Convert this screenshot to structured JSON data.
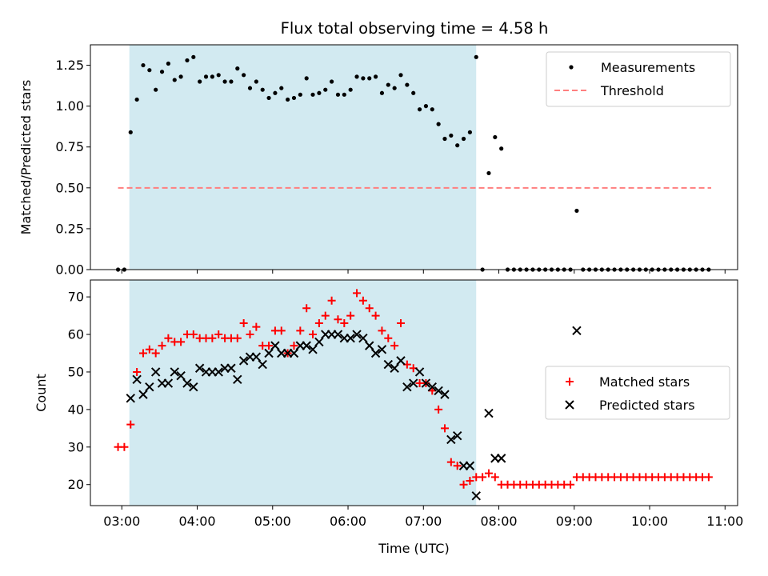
{
  "title": "Flux total observing time = 4.58 h",
  "colors": {
    "shade": "#add8e6",
    "threshold": "#ff7f7f",
    "matched": "#ff0000",
    "predicted": "#000000",
    "measurements": "#000000"
  },
  "chart_data": [
    {
      "type": "scatter",
      "panel": "top",
      "ylabel": "Matched/Predicted stars",
      "ylim": [
        0,
        1.375
      ],
      "yticks": [
        0,
        0.25,
        0.5,
        0.75,
        1.0,
        1.25
      ],
      "yticklabels": [
        "0.00",
        "0.25",
        "0.50",
        "0.75",
        "1.00",
        "1.25"
      ],
      "xlim": [
        "02:35",
        "11:10"
      ],
      "shaded_interval": [
        "03:06",
        "07:42"
      ],
      "legend_placement": "top-right",
      "legend": [
        {
          "label": "Measurements",
          "marker": "dot"
        },
        {
          "label": "Threshold",
          "marker": "dashed-line"
        }
      ],
      "threshold": {
        "value": 0.5,
        "x_from": "02:57",
        "x_to": "10:49"
      },
      "measurements": {
        "x": [
          "02:57",
          "03:02",
          "03:07",
          "03:12",
          "03:17",
          "03:22",
          "03:27",
          "03:32",
          "03:37",
          "03:42",
          "03:47",
          "03:52",
          "03:57",
          "04:02",
          "04:07",
          "04:12",
          "04:17",
          "04:22",
          "04:27",
          "04:32",
          "04:37",
          "04:42",
          "04:47",
          "04:52",
          "04:57",
          "05:02",
          "05:07",
          "05:12",
          "05:17",
          "05:22",
          "05:27",
          "05:32",
          "05:37",
          "05:42",
          "05:47",
          "05:52",
          "05:57",
          "06:02",
          "06:07",
          "06:12",
          "06:17",
          "06:22",
          "06:27",
          "06:32",
          "06:37",
          "06:42",
          "06:47",
          "06:52",
          "06:57",
          "07:02",
          "07:07",
          "07:12",
          "07:17",
          "07:22",
          "07:27",
          "07:32",
          "07:37",
          "07:42",
          "07:47",
          "07:52",
          "07:57",
          "08:02",
          "08:07",
          "08:12",
          "08:17",
          "08:22",
          "08:27",
          "08:32",
          "08:37",
          "08:42",
          "08:47",
          "08:52",
          "08:57",
          "09:02",
          "09:07",
          "09:12",
          "09:17",
          "09:22",
          "09:27",
          "09:32",
          "09:37",
          "09:42",
          "09:47",
          "09:52",
          "09:57",
          "10:02",
          "10:07",
          "10:12",
          "10:17",
          "10:22",
          "10:27",
          "10:32",
          "10:37",
          "10:42",
          "10:47"
        ],
        "y": [
          0,
          0,
          0.84,
          1.04,
          1.25,
          1.22,
          1.1,
          1.21,
          1.26,
          1.16,
          1.18,
          1.28,
          1.3,
          1.15,
          1.18,
          1.18,
          1.19,
          1.15,
          1.15,
          1.23,
          1.19,
          1.11,
          1.15,
          1.1,
          1.05,
          1.08,
          1.11,
          1.04,
          1.05,
          1.07,
          1.17,
          1.07,
          1.08,
          1.1,
          1.15,
          1.07,
          1.07,
          1.1,
          1.18,
          1.17,
          1.17,
          1.18,
          1.08,
          1.13,
          1.11,
          1.19,
          1.13,
          1.08,
          0.98,
          1.0,
          0.98,
          0.89,
          0.8,
          0.82,
          0.76,
          0.8,
          0.84,
          1.3,
          0,
          0.59,
          0.81,
          0.74,
          0,
          0,
          0,
          0,
          0,
          0,
          0,
          0,
          0,
          0,
          0,
          0.36,
          0,
          0,
          0,
          0,
          0,
          0,
          0,
          0,
          0,
          0,
          0,
          0,
          0,
          0,
          0,
          0,
          0,
          0,
          0,
          0,
          0
        ]
      }
    },
    {
      "type": "scatter",
      "panel": "bottom",
      "xlabel": "Time (UTC)",
      "ylabel": "Count",
      "ylim": [
        14.4,
        74.5
      ],
      "yticks": [
        20,
        30,
        40,
        50,
        60,
        70
      ],
      "yticklabels": [
        "20",
        "30",
        "40",
        "50",
        "60",
        "70"
      ],
      "xlim": [
        "02:35",
        "11:10"
      ],
      "xticks": [
        "03:00",
        "04:00",
        "05:00",
        "06:00",
        "07:00",
        "08:00",
        "09:00",
        "10:00",
        "11:00"
      ],
      "shaded_interval": [
        "03:06",
        "07:42"
      ],
      "legend_placement": "center-right",
      "series": [
        {
          "name": "Matched stars",
          "marker": "plus",
          "x": [
            "02:57",
            "03:02",
            "03:07",
            "03:12",
            "03:17",
            "03:22",
            "03:27",
            "03:32",
            "03:37",
            "03:42",
            "03:47",
            "03:52",
            "03:57",
            "04:02",
            "04:07",
            "04:12",
            "04:17",
            "04:22",
            "04:27",
            "04:32",
            "04:37",
            "04:42",
            "04:47",
            "04:52",
            "04:57",
            "05:02",
            "05:07",
            "05:12",
            "05:17",
            "05:22",
            "05:27",
            "05:32",
            "05:37",
            "05:42",
            "05:47",
            "05:52",
            "05:57",
            "06:02",
            "06:07",
            "06:12",
            "06:17",
            "06:22",
            "06:27",
            "06:32",
            "06:37",
            "06:42",
            "06:47",
            "06:52",
            "06:57",
            "07:02",
            "07:07",
            "07:12",
            "07:17",
            "07:22",
            "07:27",
            "07:32",
            "07:37",
            "07:42",
            "07:47",
            "07:52",
            "07:57",
            "08:02",
            "08:07",
            "08:12",
            "08:17",
            "08:22",
            "08:27",
            "08:32",
            "08:37",
            "08:42",
            "08:47",
            "08:52",
            "08:57",
            "09:02",
            "09:07",
            "09:12",
            "09:17",
            "09:22",
            "09:27",
            "09:32",
            "09:37",
            "09:42",
            "09:47",
            "09:52",
            "09:57",
            "10:02",
            "10:07",
            "10:12",
            "10:17",
            "10:22",
            "10:27",
            "10:32",
            "10:37",
            "10:42",
            "10:47"
          ],
          "y": [
            30,
            30,
            36,
            50,
            55,
            56,
            55,
            57,
            59,
            58,
            58,
            60,
            60,
            59,
            59,
            59,
            60,
            59,
            59,
            59,
            63,
            60,
            62,
            57,
            57,
            61,
            61,
            55,
            57,
            61,
            67,
            60,
            63,
            65,
            69,
            64,
            63,
            65,
            71,
            69,
            67,
            65,
            61,
            59,
            57,
            63,
            52,
            51,
            47,
            47,
            45,
            40,
            35,
            26,
            25,
            20,
            21,
            22,
            22,
            23,
            22,
            20,
            20,
            20,
            20,
            20,
            20,
            20,
            20,
            20,
            20,
            20,
            20,
            22,
            22,
            22,
            22,
            22,
            22,
            22,
            22,
            22,
            22,
            22,
            22,
            22,
            22,
            22,
            22,
            22,
            22,
            22,
            22,
            22,
            22
          ]
        },
        {
          "name": "Predicted stars",
          "marker": "x",
          "x": [
            "03:07",
            "03:12",
            "03:17",
            "03:22",
            "03:27",
            "03:32",
            "03:37",
            "03:42",
            "03:47",
            "03:52",
            "03:57",
            "04:02",
            "04:07",
            "04:12",
            "04:17",
            "04:22",
            "04:27",
            "04:32",
            "04:37",
            "04:42",
            "04:47",
            "04:52",
            "04:57",
            "05:02",
            "05:07",
            "05:12",
            "05:17",
            "05:22",
            "05:27",
            "05:32",
            "05:37",
            "05:42",
            "05:47",
            "05:52",
            "05:57",
            "06:02",
            "06:07",
            "06:12",
            "06:17",
            "06:22",
            "06:27",
            "06:32",
            "06:37",
            "06:42",
            "06:47",
            "06:52",
            "06:57",
            "07:02",
            "07:07",
            "07:12",
            "07:17",
            "07:22",
            "07:27",
            "07:32",
            "07:37",
            "07:42",
            "07:52",
            "07:57",
            "08:02",
            "09:02"
          ],
          "y": [
            43,
            48,
            44,
            46,
            50,
            47,
            47,
            50,
            49,
            47,
            46,
            51,
            50,
            50,
            50,
            51,
            51,
            48,
            53,
            54,
            54,
            52,
            55,
            57,
            55,
            55,
            55,
            57,
            57,
            56,
            58,
            60,
            60,
            60,
            59,
            59,
            60,
            59,
            57,
            55,
            56,
            52,
            51,
            53,
            46,
            47,
            50,
            47,
            46,
            45,
            44,
            32,
            33,
            25,
            25,
            17,
            39,
            27,
            27,
            61
          ]
        }
      ]
    }
  ]
}
